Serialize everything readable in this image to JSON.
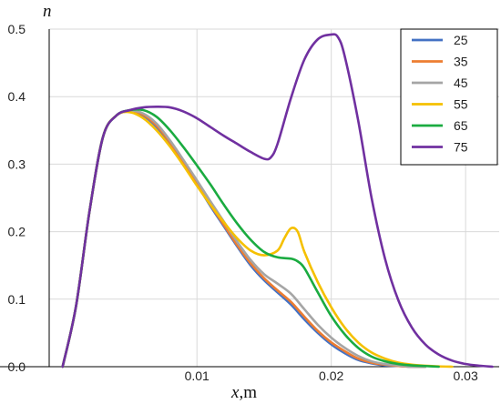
{
  "chart_data": {
    "type": "line",
    "xlabel": "x",
    "xlabel_unit": ",m",
    "ylabel": "n",
    "xlim": [
      -0.001,
      0.0325
    ],
    "ylim": [
      0,
      0.5
    ],
    "xticks": [
      0.01,
      0.02,
      0.03
    ],
    "xtick_labels": [
      "0.01",
      "0.02",
      "0.03"
    ],
    "yticks": [
      0,
      0.1,
      0.2,
      0.3,
      0.4,
      0.5
    ],
    "ytick_labels": [
      "0.0",
      "0.1",
      "0.2",
      "0.3",
      "0.4",
      "0.5"
    ],
    "grid": true,
    "legend_position": "top-right",
    "colors": {
      "grid": "#d9d9d9",
      "axis": "#000000",
      "legend_border": "#000000"
    },
    "series": [
      {
        "name": "25",
        "color": "#4472c4",
        "x": [
          0.0,
          0.001,
          0.002,
          0.003,
          0.004,
          0.005,
          0.006,
          0.007,
          0.008,
          0.009,
          0.01,
          0.011,
          0.012,
          0.013,
          0.014,
          0.015,
          0.016,
          0.017,
          0.018,
          0.019,
          0.02,
          0.021,
          0.022,
          0.023,
          0.024,
          0.025,
          0.026,
          0.027
        ],
        "y": [
          0.0,
          0.09,
          0.23,
          0.34,
          0.372,
          0.378,
          0.372,
          0.355,
          0.33,
          0.3,
          0.27,
          0.238,
          0.208,
          0.178,
          0.15,
          0.128,
          0.11,
          0.092,
          0.07,
          0.05,
          0.033,
          0.02,
          0.01,
          0.005,
          0.002,
          0.001,
          0.0,
          0.0
        ]
      },
      {
        "name": "35",
        "color": "#ed7d31",
        "x": [
          0.0,
          0.001,
          0.002,
          0.003,
          0.004,
          0.005,
          0.006,
          0.007,
          0.008,
          0.009,
          0.01,
          0.011,
          0.012,
          0.013,
          0.014,
          0.015,
          0.016,
          0.017,
          0.018,
          0.019,
          0.02,
          0.021,
          0.022,
          0.023,
          0.024,
          0.025,
          0.026,
          0.027
        ],
        "y": [
          0.0,
          0.09,
          0.23,
          0.34,
          0.372,
          0.378,
          0.373,
          0.357,
          0.332,
          0.302,
          0.272,
          0.24,
          0.21,
          0.18,
          0.153,
          0.131,
          0.113,
          0.096,
          0.074,
          0.053,
          0.036,
          0.023,
          0.012,
          0.006,
          0.003,
          0.001,
          0.0,
          0.0
        ]
      },
      {
        "name": "45",
        "color": "#a5a5a5",
        "x": [
          0.0,
          0.001,
          0.002,
          0.003,
          0.004,
          0.005,
          0.006,
          0.007,
          0.008,
          0.009,
          0.01,
          0.011,
          0.012,
          0.013,
          0.014,
          0.015,
          0.016,
          0.017,
          0.018,
          0.019,
          0.02,
          0.021,
          0.022,
          0.023,
          0.024,
          0.025,
          0.026,
          0.027
        ],
        "y": [
          0.0,
          0.09,
          0.23,
          0.34,
          0.372,
          0.379,
          0.375,
          0.36,
          0.335,
          0.306,
          0.276,
          0.245,
          0.215,
          0.185,
          0.158,
          0.137,
          0.123,
          0.108,
          0.085,
          0.062,
          0.043,
          0.028,
          0.016,
          0.008,
          0.004,
          0.002,
          0.0,
          0.0
        ]
      },
      {
        "name": "55",
        "color": "#f5c000",
        "x": [
          0.0,
          0.001,
          0.002,
          0.003,
          0.004,
          0.005,
          0.006,
          0.007,
          0.008,
          0.009,
          0.01,
          0.011,
          0.012,
          0.013,
          0.014,
          0.015,
          0.016,
          0.0165,
          0.017,
          0.0175,
          0.018,
          0.019,
          0.02,
          0.021,
          0.022,
          0.023,
          0.024,
          0.025,
          0.026,
          0.027,
          0.028,
          0.029
        ],
        "y": [
          0.0,
          0.09,
          0.23,
          0.34,
          0.372,
          0.377,
          0.368,
          0.35,
          0.326,
          0.298,
          0.268,
          0.24,
          0.214,
          0.19,
          0.172,
          0.165,
          0.172,
          0.19,
          0.205,
          0.2,
          0.17,
          0.125,
          0.088,
          0.058,
          0.036,
          0.021,
          0.012,
          0.006,
          0.003,
          0.0015,
          0.0005,
          0.0
        ]
      },
      {
        "name": "65",
        "color": "#1aab40",
        "x": [
          0.0,
          0.001,
          0.002,
          0.003,
          0.004,
          0.005,
          0.006,
          0.007,
          0.008,
          0.009,
          0.01,
          0.011,
          0.012,
          0.013,
          0.014,
          0.015,
          0.016,
          0.017,
          0.0175,
          0.018,
          0.019,
          0.02,
          0.021,
          0.022,
          0.023,
          0.024,
          0.025,
          0.026,
          0.027,
          0.028
        ],
        "y": [
          0.0,
          0.09,
          0.23,
          0.34,
          0.372,
          0.38,
          0.38,
          0.37,
          0.35,
          0.325,
          0.298,
          0.27,
          0.24,
          0.212,
          0.188,
          0.17,
          0.162,
          0.16,
          0.156,
          0.146,
          0.11,
          0.075,
          0.048,
          0.028,
          0.015,
          0.008,
          0.004,
          0.002,
          0.001,
          0.0
        ]
      },
      {
        "name": "75",
        "color": "#7030a0",
        "x": [
          0.0,
          0.001,
          0.002,
          0.003,
          0.004,
          0.005,
          0.006,
          0.007,
          0.008,
          0.009,
          0.01,
          0.011,
          0.012,
          0.013,
          0.014,
          0.015,
          0.0155,
          0.016,
          0.017,
          0.018,
          0.019,
          0.02,
          0.0205,
          0.021,
          0.022,
          0.023,
          0.024,
          0.025,
          0.026,
          0.027,
          0.028,
          0.029,
          0.03,
          0.031,
          0.032
        ],
        "y": [
          0.0,
          0.09,
          0.23,
          0.34,
          0.372,
          0.38,
          0.384,
          0.385,
          0.384,
          0.378,
          0.368,
          0.355,
          0.342,
          0.33,
          0.318,
          0.308,
          0.31,
          0.33,
          0.398,
          0.455,
          0.485,
          0.492,
          0.488,
          0.46,
          0.365,
          0.25,
          0.16,
          0.098,
          0.058,
          0.033,
          0.018,
          0.009,
          0.004,
          0.0015,
          0.0
        ]
      }
    ]
  }
}
